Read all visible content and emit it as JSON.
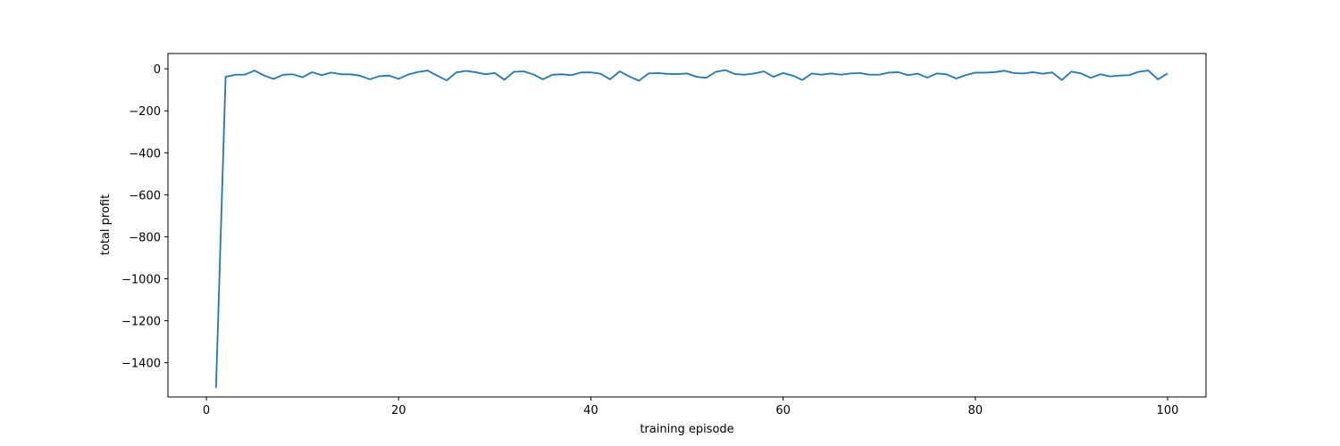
{
  "chart_data": {
    "type": "line",
    "title": "",
    "xlabel": "training episode",
    "ylabel": "total profit",
    "xlim": [
      -4,
      104
    ],
    "ylim": [
      -1563,
      73
    ],
    "xticks": [
      0,
      20,
      40,
      60,
      80,
      100
    ],
    "xtick_labels": [
      "0",
      "20",
      "40",
      "60",
      "80",
      "100"
    ],
    "yticks": [
      0,
      -200,
      -400,
      -600,
      -800,
      -1000,
      -1200,
      -1400
    ],
    "ytick_labels": [
      "0",
      "−200",
      "−400",
      "−600",
      "−800",
      "−1000",
      "−1200",
      "−1400"
    ],
    "grid": false,
    "legend": false,
    "color": "#1f77b4",
    "series": [
      {
        "x": [
          1,
          2,
          3,
          4,
          5,
          6,
          7,
          8,
          9,
          10,
          11,
          12,
          13,
          14,
          15,
          16,
          17,
          18,
          19,
          20,
          21,
          22,
          23,
          24,
          25,
          26,
          27,
          28,
          29,
          30,
          31,
          32,
          33,
          34,
          35,
          36,
          37,
          38,
          39,
          40,
          41,
          42,
          43,
          44,
          45,
          46,
          47,
          48,
          49,
          50,
          51,
          52,
          53,
          54,
          55,
          56,
          57,
          58,
          59,
          60,
          61,
          62,
          63,
          64,
          65,
          66,
          67,
          68,
          69,
          70,
          71,
          72,
          73,
          74,
          75,
          76,
          77,
          78,
          79,
          80,
          81,
          82,
          83,
          84,
          85,
          86,
          87,
          88,
          89,
          90,
          91,
          92,
          93,
          94,
          95,
          96,
          97,
          98,
          99,
          100
        ],
        "values": [
          -1520,
          -38,
          -28,
          -28,
          -8,
          -32,
          -48,
          -28,
          -26,
          -40,
          -16,
          -30,
          -18,
          -26,
          -26,
          -33,
          -50,
          -35,
          -32,
          -48,
          -27,
          -15,
          -8,
          -32,
          -55,
          -17,
          -10,
          -16,
          -26,
          -20,
          -52,
          -14,
          -12,
          -26,
          -50,
          -28,
          -26,
          -30,
          -17,
          -17,
          -23,
          -50,
          -12,
          -36,
          -57,
          -22,
          -20,
          -24,
          -25,
          -22,
          -38,
          -43,
          -14,
          -6,
          -25,
          -28,
          -22,
          -12,
          -38,
          -20,
          -32,
          -53,
          -22,
          -28,
          -22,
          -28,
          -22,
          -20,
          -28,
          -28,
          -18,
          -16,
          -30,
          -23,
          -42,
          -22,
          -26,
          -46,
          -30,
          -18,
          -18,
          -16,
          -9,
          -20,
          -22,
          -16,
          -23,
          -17,
          -53,
          -13,
          -22,
          -43,
          -26,
          -36,
          -32,
          -30,
          -14,
          -8,
          -50,
          -22
        ]
      }
    ]
  }
}
